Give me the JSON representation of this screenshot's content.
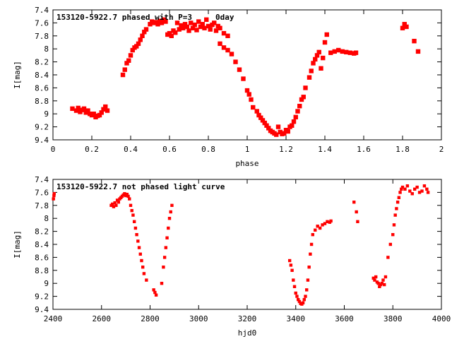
{
  "colors": {
    "points": "#ff0000",
    "axes": "#000000",
    "background": "#ffffff"
  },
  "chart_data": [
    {
      "type": "scatter",
      "title": "153120-5922.7 phased with P=3",
      "title_suffix": "0day",
      "xlabel": "phase",
      "ylabel": "I[mag]",
      "xlim": [
        0,
        2
      ],
      "ylim": [
        7.4,
        9.4
      ],
      "y_inverted": true,
      "grid": false,
      "legend": "none",
      "x_ticks": [
        0,
        0.2,
        0.4,
        0.6,
        0.8,
        1,
        1.2,
        1.4,
        1.6,
        1.8,
        2
      ],
      "x_tick_labels": [
        "0",
        "0.2",
        "0.4",
        "0.6",
        "0.8",
        "1",
        "1.2",
        "1.4",
        "1.6",
        "1.8",
        "2"
      ],
      "y_ticks": [
        7.4,
        7.6,
        7.8,
        8,
        8.2,
        8.4,
        8.6,
        8.8,
        9,
        9.2,
        9.4
      ],
      "y_tick_labels": [
        "7.4",
        "7.6",
        "7.8",
        "8",
        "8.2",
        "8.4",
        "8.6",
        "8.8",
        "9",
        "9.2",
        "9.4"
      ],
      "series": [
        {
          "color": "#ff0000",
          "x": [
            0.1,
            0.12,
            0.13,
            0.14,
            0.15,
            0.16,
            0.17,
            0.18,
            0.19,
            0.2,
            0.21,
            0.22,
            0.23,
            0.24,
            0.25,
            0.26,
            0.27,
            0.28,
            0.36,
            0.37,
            0.38,
            0.39,
            0.4,
            0.41,
            0.42,
            0.43,
            0.44,
            0.45,
            0.46,
            0.47,
            0.48,
            0.5,
            0.51,
            0.52,
            0.53,
            0.54,
            0.55,
            0.56,
            0.57,
            0.58,
            0.59,
            0.6,
            0.61,
            0.62,
            0.63,
            0.64,
            0.65,
            0.66,
            0.67,
            0.68,
            0.69,
            0.7,
            0.71,
            0.72,
            0.73,
            0.74,
            0.75,
            0.76,
            0.77,
            0.78,
            0.79,
            0.8,
            0.81,
            0.82,
            0.83,
            0.84,
            0.85,
            0.86,
            0.88,
            0.9,
            0.86,
            0.88,
            0.9,
            0.92,
            0.94,
            0.96,
            0.98,
            1.0,
            1.01,
            1.02,
            1.03,
            1.05,
            1.06,
            1.07,
            1.08,
            1.09,
            1.1,
            1.11,
            1.12,
            1.13,
            1.14,
            1.15,
            1.16,
            1.17,
            1.18,
            1.19,
            1.2,
            1.21,
            1.22,
            1.23,
            1.24,
            1.25,
            1.26,
            1.27,
            1.28,
            1.29,
            1.3,
            1.32,
            1.33,
            1.34,
            1.35,
            1.36,
            1.37,
            1.38,
            1.39,
            1.4,
            1.41,
            1.43,
            1.45,
            1.47,
            1.49,
            1.51,
            1.53,
            1.55,
            1.56,
            1.8,
            1.81,
            1.82,
            1.86,
            1.88
          ],
          "y": [
            8.92,
            8.95,
            8.91,
            8.97,
            8.94,
            8.92,
            8.98,
            8.95,
            9.0,
            9.02,
            9.0,
            9.05,
            9.03,
            9.02,
            8.98,
            8.93,
            8.89,
            8.95,
            8.4,
            8.32,
            8.22,
            8.18,
            8.1,
            8.02,
            7.98,
            7.96,
            7.92,
            7.86,
            7.8,
            7.74,
            7.7,
            7.62,
            7.58,
            7.6,
            7.59,
            7.62,
            7.57,
            7.6,
            7.55,
            7.58,
            7.78,
            7.76,
            7.8,
            7.72,
            7.75,
            7.6,
            7.7,
            7.64,
            7.68,
            7.62,
            7.66,
            7.72,
            7.6,
            7.68,
            7.63,
            7.71,
            7.58,
            7.66,
            7.62,
            7.68,
            7.55,
            7.65,
            7.7,
            7.63,
            7.6,
            7.72,
            7.65,
            7.68,
            7.76,
            7.8,
            7.92,
            7.98,
            8.02,
            8.08,
            8.2,
            8.32,
            8.46,
            8.64,
            8.7,
            8.78,
            8.9,
            8.96,
            9.02,
            9.06,
            9.1,
            9.14,
            9.18,
            9.22,
            9.26,
            9.28,
            9.3,
            9.32,
            9.2,
            9.28,
            9.31,
            9.3,
            9.25,
            9.27,
            9.2,
            9.18,
            9.12,
            9.05,
            8.96,
            8.88,
            8.78,
            8.74,
            8.6,
            8.44,
            8.34,
            8.22,
            8.16,
            8.1,
            8.05,
            8.3,
            8.14,
            7.9,
            7.78,
            8.06,
            8.04,
            8.02,
            8.04,
            8.05,
            8.06,
            8.07,
            8.06,
            7.68,
            7.62,
            7.66,
            7.88,
            8.04
          ]
        }
      ]
    },
    {
      "type": "scatter",
      "title": "153120-5922.7 not phased light curve",
      "xlabel": "hjd0",
      "ylabel": "I[mag]",
      "xlim": [
        2400,
        4000
      ],
      "ylim": [
        7.4,
        9.4
      ],
      "y_inverted": true,
      "grid": false,
      "legend": "none",
      "x_ticks": [
        2400,
        2600,
        2800,
        3000,
        3200,
        3400,
        3600,
        3800,
        4000
      ],
      "x_tick_labels": [
        "2400",
        "2600",
        "2800",
        "3000",
        "3200",
        "3400",
        "3600",
        "3800",
        "4000"
      ],
      "y_ticks": [
        7.4,
        7.6,
        7.8,
        8,
        8.2,
        8.4,
        8.6,
        8.8,
        9,
        9.2,
        9.4
      ],
      "y_tick_labels": [
        "7.4",
        "7.6",
        "7.8",
        "8",
        "8.2",
        "8.4",
        "8.6",
        "8.8",
        "9",
        "9.2",
        "9.4"
      ],
      "series": [
        {
          "color": "#ff0000",
          "x": [
            2402,
            2404,
            2405,
            2640,
            2645,
            2650,
            2655,
            2660,
            2665,
            2670,
            2675,
            2680,
            2685,
            2690,
            2695,
            2700,
            2705,
            2710,
            2715,
            2720,
            2725,
            2730,
            2735,
            2740,
            2745,
            2750,
            2755,
            2760,
            2765,
            2770,
            2775,
            2785,
            2815,
            2820,
            2825,
            2848,
            2855,
            2860,
            2865,
            2870,
            2875,
            2880,
            2885,
            2890,
            3375,
            3380,
            3385,
            3390,
            3395,
            3400,
            3405,
            3410,
            3415,
            3420,
            3425,
            3430,
            3435,
            3440,
            3445,
            3450,
            3455,
            3460,
            3465,
            3470,
            3480,
            3490,
            3500,
            3510,
            3520,
            3530,
            3540,
            3545,
            3640,
            3650,
            3655,
            3720,
            3725,
            3730,
            3735,
            3740,
            3745,
            3750,
            3755,
            3760,
            3765,
            3770,
            3780,
            3790,
            3800,
            3805,
            3810,
            3815,
            3820,
            3825,
            3830,
            3835,
            3840,
            3850,
            3860,
            3870,
            3880,
            3890,
            3900,
            3910,
            3920,
            3930,
            3940,
            3945
          ],
          "y": [
            7.7,
            7.65,
            7.62,
            7.8,
            7.78,
            7.82,
            7.76,
            7.8,
            7.72,
            7.75,
            7.7,
            7.68,
            7.66,
            7.64,
            7.62,
            7.65,
            7.63,
            7.66,
            7.7,
            7.8,
            7.88,
            7.95,
            8.05,
            8.15,
            8.25,
            8.35,
            8.45,
            8.55,
            8.65,
            8.75,
            8.85,
            8.95,
            9.1,
            9.14,
            9.18,
            9.0,
            8.75,
            8.6,
            8.45,
            8.3,
            8.15,
            8.0,
            7.9,
            7.8,
            8.65,
            8.72,
            8.8,
            8.95,
            9.05,
            9.15,
            9.2,
            9.25,
            9.28,
            9.31,
            9.32,
            9.3,
            9.25,
            9.2,
            9.1,
            8.95,
            8.75,
            8.55,
            8.4,
            8.25,
            8.18,
            8.12,
            8.15,
            8.1,
            8.08,
            8.05,
            8.06,
            8.04,
            7.75,
            7.9,
            8.05,
            8.92,
            8.95,
            8.9,
            8.98,
            9.0,
            9.05,
            9.02,
            9.0,
            8.95,
            9.02,
            8.9,
            8.6,
            8.4,
            8.25,
            8.1,
            7.95,
            7.85,
            7.75,
            7.68,
            7.6,
            7.55,
            7.52,
            7.55,
            7.5,
            7.58,
            7.62,
            7.55,
            7.52,
            7.6,
            7.58,
            7.5,
            7.55,
            7.6
          ]
        }
      ]
    }
  ]
}
